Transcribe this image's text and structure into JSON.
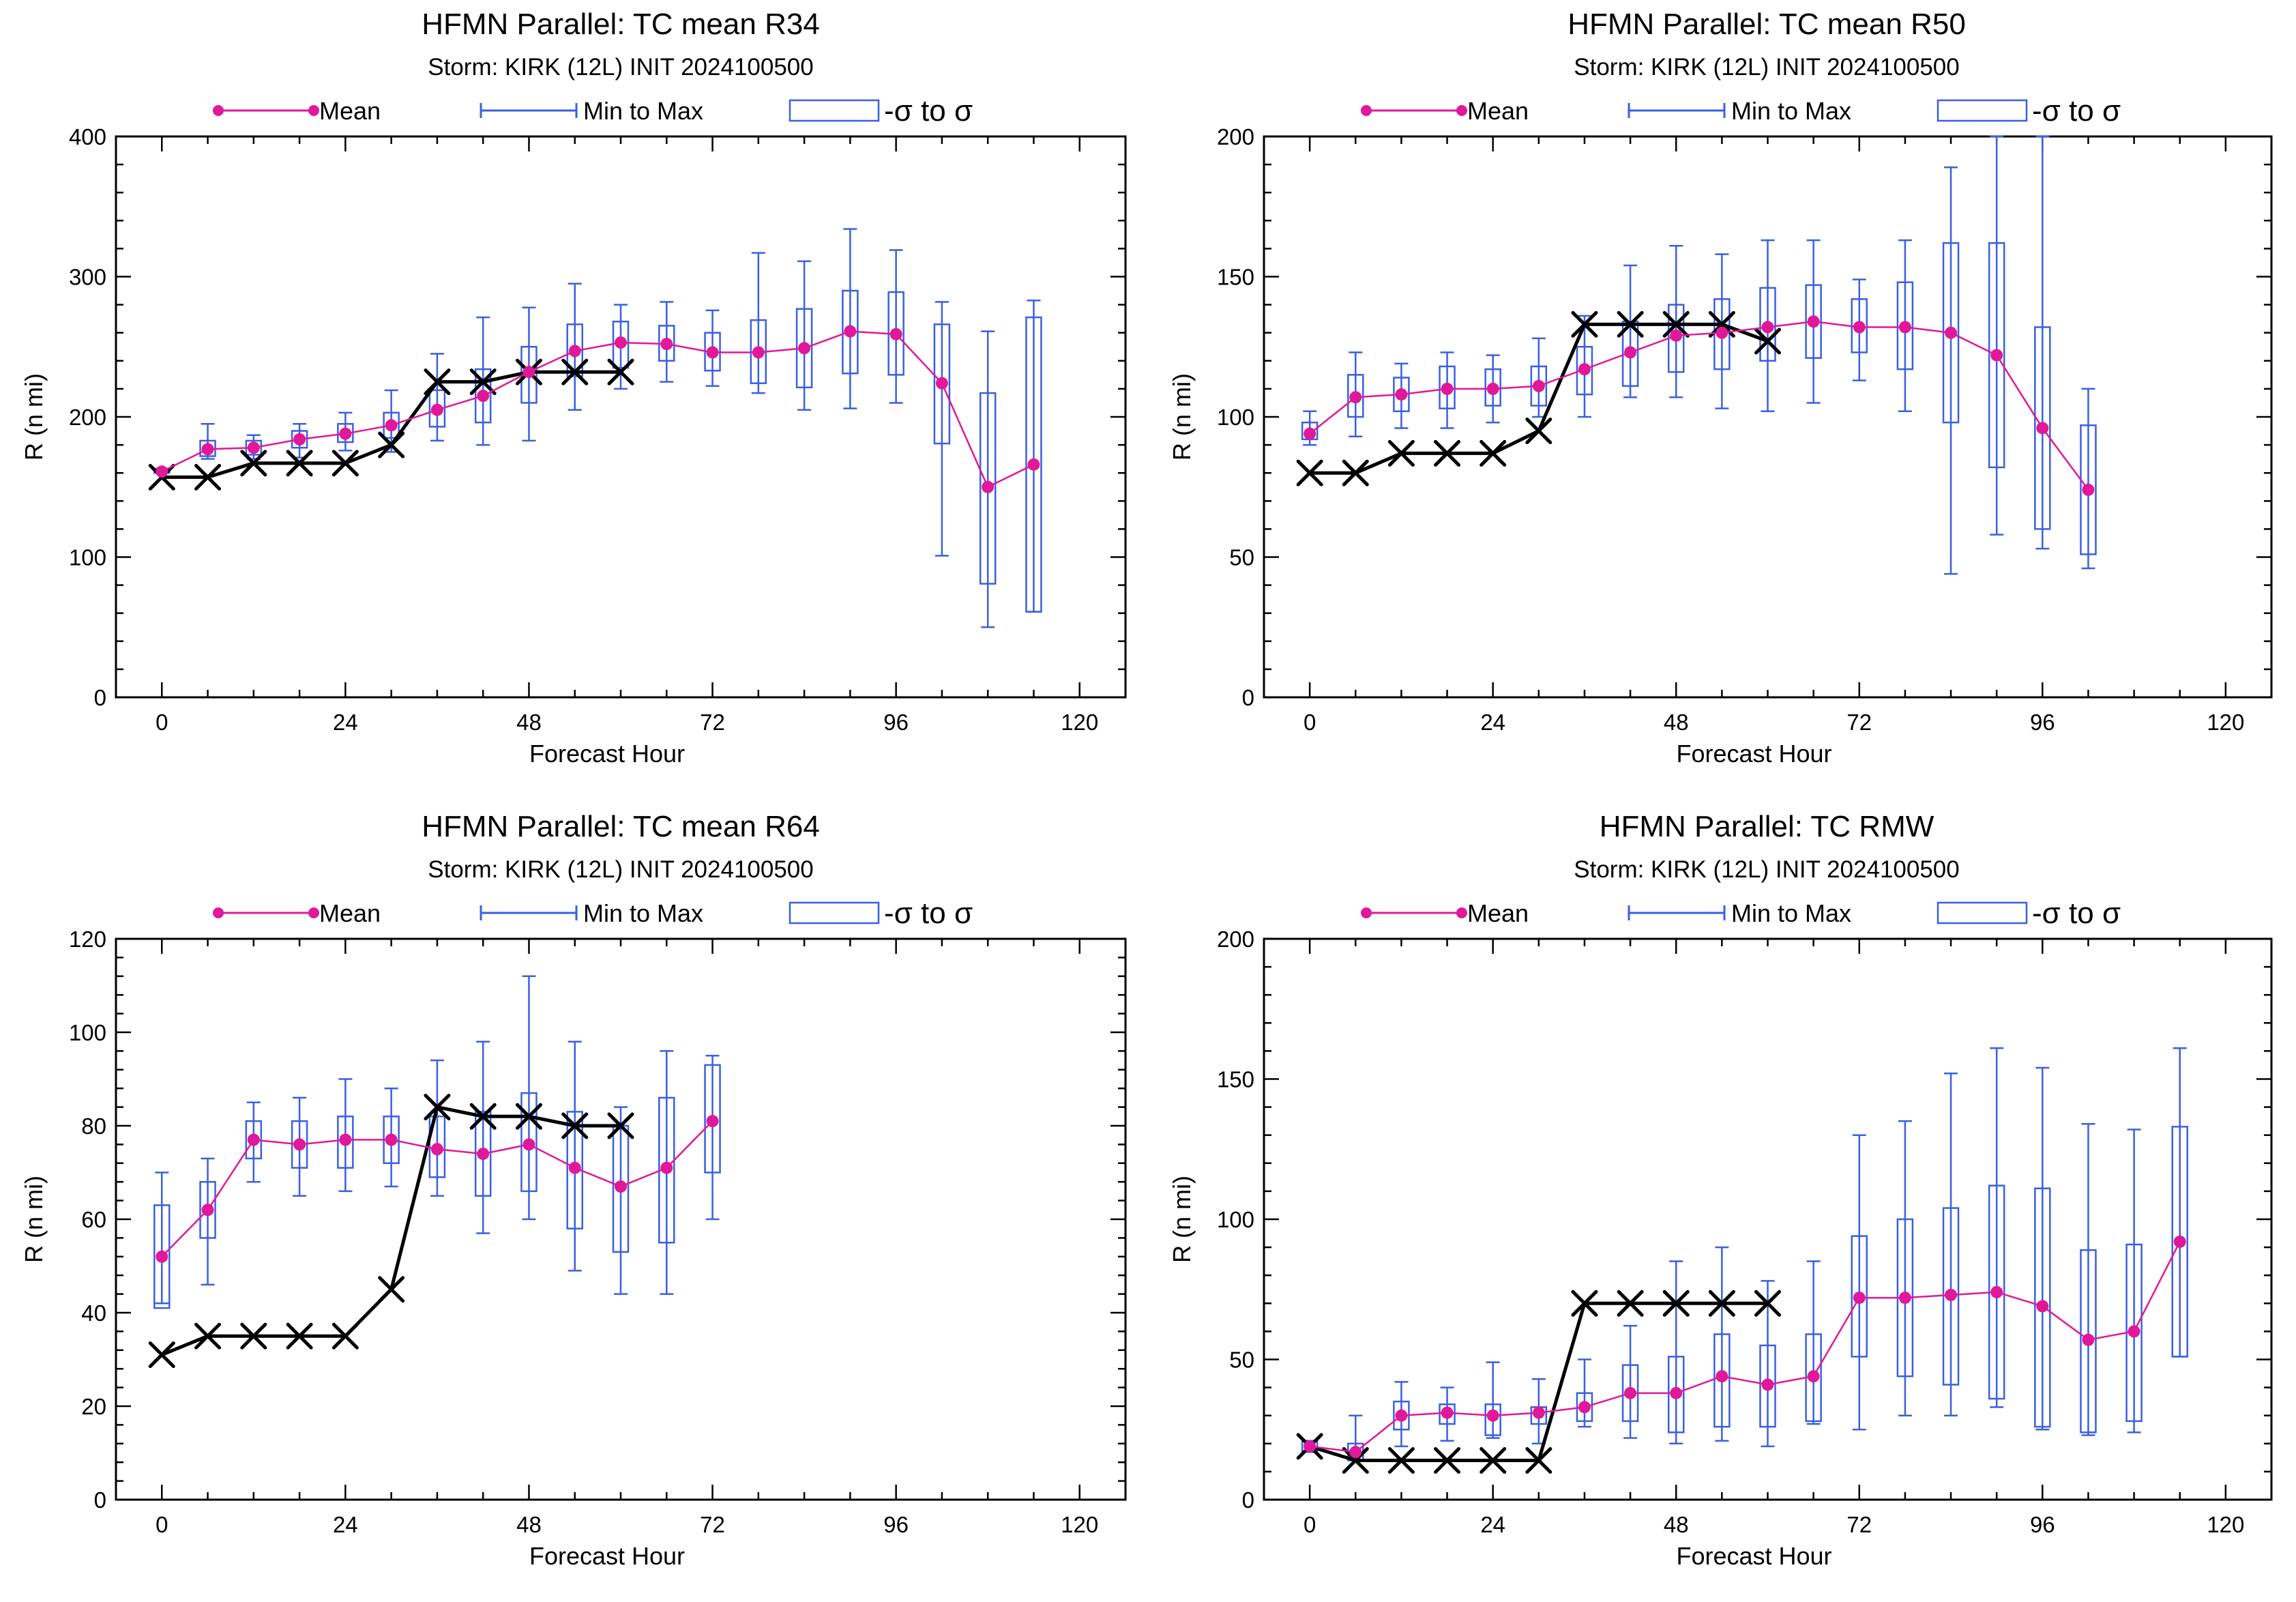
{
  "legend": {
    "mean": "Mean",
    "minmax": "Min to Max",
    "sigma": "-σ to σ"
  },
  "colors": {
    "mean": "#e0189a",
    "range": "#3b5fe0",
    "best_track": "#000000"
  },
  "chart_data": [
    {
      "type": "box",
      "title": "HFMN Parallel: TC mean R34",
      "subtitle": "Storm: KIRK (12L) INIT 2024100500",
      "xlabel": "Forecast Hour",
      "ylabel": "R (n mi)",
      "xlim": [
        -6,
        126
      ],
      "ylim": [
        0,
        400
      ],
      "xticks": [
        0,
        24,
        48,
        72,
        96,
        120
      ],
      "yticks": [
        0,
        100,
        200,
        300,
        400
      ],
      "best_track": {
        "x": [
          0,
          6,
          12,
          18,
          24,
          30,
          36,
          42,
          48,
          54,
          60
        ],
        "y": [
          157,
          157,
          167,
          167,
          167,
          180,
          225,
          225,
          232,
          232,
          232
        ]
      },
      "mean": {
        "x": [
          0,
          6,
          12,
          18,
          24,
          30,
          36,
          42,
          48,
          54,
          60,
          66,
          72,
          78,
          84,
          90,
          96,
          102,
          108,
          114
        ],
        "y": [
          161,
          177,
          178,
          184,
          188,
          194,
          205,
          215,
          232,
          247,
          253,
          252,
          246,
          246,
          249,
          261,
          259,
          224,
          150,
          166
        ]
      },
      "boxes": [
        {
          "x": 0,
          "min": 160,
          "max": 163,
          "lo": 160,
          "hi": 163
        },
        {
          "x": 6,
          "min": 170,
          "max": 195,
          "lo": 172,
          "hi": 183
        },
        {
          "x": 12,
          "min": 170,
          "max": 187,
          "lo": 173,
          "hi": 183
        },
        {
          "x": 18,
          "min": 171,
          "max": 195,
          "lo": 178,
          "hi": 190
        },
        {
          "x": 24,
          "min": 176,
          "max": 203,
          "lo": 182,
          "hi": 195
        },
        {
          "x": 30,
          "min": 175,
          "max": 219,
          "lo": 185,
          "hi": 203
        },
        {
          "x": 36,
          "min": 183,
          "max": 245,
          "lo": 193,
          "hi": 219
        },
        {
          "x": 42,
          "min": 180,
          "max": 271,
          "lo": 196,
          "hi": 234
        },
        {
          "x": 48,
          "min": 183,
          "max": 278,
          "lo": 210,
          "hi": 250
        },
        {
          "x": 54,
          "min": 205,
          "max": 295,
          "lo": 229,
          "hi": 266
        },
        {
          "x": 60,
          "min": 220,
          "max": 280,
          "lo": 235,
          "hi": 268
        },
        {
          "x": 66,
          "min": 225,
          "max": 282,
          "lo": 240,
          "hi": 265
        },
        {
          "x": 72,
          "min": 222,
          "max": 276,
          "lo": 233,
          "hi": 260
        },
        {
          "x": 78,
          "min": 217,
          "max": 317,
          "lo": 224,
          "hi": 269
        },
        {
          "x": 84,
          "min": 205,
          "max": 311,
          "lo": 221,
          "hi": 277
        },
        {
          "x": 90,
          "min": 206,
          "max": 334,
          "lo": 231,
          "hi": 290
        },
        {
          "x": 96,
          "min": 210,
          "max": 319,
          "lo": 230,
          "hi": 289
        },
        {
          "x": 102,
          "min": 101,
          "max": 282,
          "lo": 181,
          "hi": 266
        },
        {
          "x": 108,
          "min": 50,
          "max": 261,
          "lo": 81,
          "hi": 217
        },
        {
          "x": 114,
          "min": 61,
          "max": 283,
          "lo": 61,
          "hi": 271
        }
      ]
    },
    {
      "type": "box",
      "title": "HFMN Parallel: TC mean R50",
      "subtitle": "Storm: KIRK (12L) INIT 2024100500",
      "xlabel": "Forecast Hour",
      "ylabel": "R (n mi)",
      "xlim": [
        -6,
        126
      ],
      "ylim": [
        0,
        200
      ],
      "xticks": [
        0,
        24,
        48,
        72,
        96,
        120
      ],
      "yticks": [
        0,
        50,
        100,
        150,
        200
      ],
      "best_track": {
        "x": [
          0,
          6,
          12,
          18,
          24,
          30,
          36,
          42,
          48,
          54,
          60
        ],
        "y": [
          80,
          80,
          87,
          87,
          87,
          95,
          133,
          133,
          133,
          133,
          127
        ]
      },
      "mean": {
        "x": [
          0,
          6,
          12,
          18,
          24,
          30,
          36,
          42,
          48,
          54,
          60,
          66,
          72,
          78,
          84,
          90,
          96,
          102
        ],
        "y": [
          94,
          107,
          108,
          110,
          110,
          111,
          117,
          123,
          129,
          130,
          132,
          134,
          132,
          132,
          130,
          122,
          96,
          74
        ]
      },
      "boxes": [
        {
          "x": 0,
          "min": 90,
          "max": 102,
          "lo": 92,
          "hi": 98
        },
        {
          "x": 6,
          "min": 93,
          "max": 123,
          "lo": 100,
          "hi": 115
        },
        {
          "x": 12,
          "min": 96,
          "max": 119,
          "lo": 102,
          "hi": 114
        },
        {
          "x": 18,
          "min": 96,
          "max": 123,
          "lo": 103,
          "hi": 118
        },
        {
          "x": 24,
          "min": 98,
          "max": 122,
          "lo": 104,
          "hi": 117
        },
        {
          "x": 30,
          "min": 100,
          "max": 128,
          "lo": 104,
          "hi": 118
        },
        {
          "x": 36,
          "min": 100,
          "max": 136,
          "lo": 108,
          "hi": 125
        },
        {
          "x": 42,
          "min": 107,
          "max": 154,
          "lo": 111,
          "hi": 134
        },
        {
          "x": 48,
          "min": 107,
          "max": 161,
          "lo": 116,
          "hi": 140
        },
        {
          "x": 54,
          "min": 103,
          "max": 158,
          "lo": 117,
          "hi": 142
        },
        {
          "x": 60,
          "min": 102,
          "max": 163,
          "lo": 120,
          "hi": 146
        },
        {
          "x": 66,
          "min": 105,
          "max": 163,
          "lo": 121,
          "hi": 147
        },
        {
          "x": 72,
          "min": 113,
          "max": 149,
          "lo": 123,
          "hi": 142
        },
        {
          "x": 78,
          "min": 102,
          "max": 163,
          "lo": 117,
          "hi": 148
        },
        {
          "x": 84,
          "min": 44,
          "max": 189,
          "lo": 98,
          "hi": 162
        },
        {
          "x": 90,
          "min": 58,
          "max": 200,
          "lo": 82,
          "hi": 162
        },
        {
          "x": 96,
          "min": 53,
          "max": 200,
          "lo": 60,
          "hi": 132
        },
        {
          "x": 102,
          "min": 46,
          "max": 110,
          "lo": 51,
          "hi": 97
        }
      ]
    },
    {
      "type": "box",
      "title": "HFMN Parallel: TC mean R64",
      "subtitle": "Storm: KIRK (12L) INIT 2024100500",
      "xlabel": "Forecast Hour",
      "ylabel": "R (n mi)",
      "xlim": [
        -6,
        126
      ],
      "ylim": [
        0,
        120
      ],
      "xticks": [
        0,
        24,
        48,
        72,
        96,
        120
      ],
      "yticks": [
        0,
        20,
        40,
        60,
        80,
        100,
        120
      ],
      "best_track": {
        "x": [
          0,
          6,
          12,
          18,
          24,
          30,
          36,
          42,
          48,
          54,
          60
        ],
        "y": [
          31,
          35,
          35,
          35,
          35,
          45,
          84,
          82,
          82,
          80,
          80
        ]
      },
      "mean": {
        "x": [
          0,
          6,
          12,
          18,
          24,
          30,
          36,
          42,
          48,
          54,
          60,
          66,
          72
        ],
        "y": [
          52,
          62,
          77,
          76,
          77,
          77,
          75,
          74,
          76,
          71,
          67,
          71,
          81
        ]
      },
      "boxes": [
        {
          "x": 0,
          "min": 42,
          "max": 70,
          "lo": 41,
          "hi": 63
        },
        {
          "x": 6,
          "min": 46,
          "max": 73,
          "lo": 56,
          "hi": 68
        },
        {
          "x": 12,
          "min": 68,
          "max": 85,
          "lo": 73,
          "hi": 81
        },
        {
          "x": 18,
          "min": 65,
          "max": 86,
          "lo": 71,
          "hi": 81
        },
        {
          "x": 24,
          "min": 66,
          "max": 90,
          "lo": 71,
          "hi": 82
        },
        {
          "x": 30,
          "min": 67,
          "max": 88,
          "lo": 72,
          "hi": 82
        },
        {
          "x": 36,
          "min": 65,
          "max": 94,
          "lo": 69,
          "hi": 82
        },
        {
          "x": 42,
          "min": 57,
          "max": 98,
          "lo": 65,
          "hi": 83
        },
        {
          "x": 48,
          "min": 60,
          "max": 112,
          "lo": 66,
          "hi": 87
        },
        {
          "x": 54,
          "min": 49,
          "max": 98,
          "lo": 58,
          "hi": 83
        },
        {
          "x": 60,
          "min": 44,
          "max": 84,
          "lo": 53,
          "hi": 80
        },
        {
          "x": 66,
          "min": 44,
          "max": 96,
          "lo": 55,
          "hi": 86
        },
        {
          "x": 72,
          "min": 60,
          "max": 95,
          "lo": 70,
          "hi": 93
        }
      ]
    },
    {
      "type": "box",
      "title": "HFMN Parallel: TC RMW",
      "subtitle": "Storm: KIRK (12L) INIT 2024100500",
      "xlabel": "Forecast Hour",
      "ylabel": "R (n mi)",
      "xlim": [
        -6,
        126
      ],
      "ylim": [
        0,
        200
      ],
      "xticks": [
        0,
        24,
        48,
        72,
        96,
        120
      ],
      "yticks": [
        0,
        50,
        100,
        150,
        200
      ],
      "best_track": {
        "x": [
          0,
          6,
          12,
          18,
          24,
          30,
          36,
          42,
          48,
          54,
          60
        ],
        "y": [
          19,
          14,
          14,
          14,
          14,
          14,
          70,
          70,
          70,
          70,
          70
        ]
      },
      "mean": {
        "x": [
          0,
          6,
          12,
          18,
          24,
          30,
          36,
          42,
          48,
          54,
          60,
          66,
          72,
          78,
          84,
          90,
          96,
          102,
          108,
          114
        ],
        "y": [
          19,
          17,
          30,
          31,
          30,
          31,
          33,
          38,
          38,
          44,
          41,
          44,
          72,
          72,
          73,
          74,
          69,
          57,
          60,
          92
        ]
      },
      "boxes": [
        {
          "x": 0,
          "min": 17,
          "max": 21,
          "lo": 17,
          "hi": 21
        },
        {
          "x": 6,
          "min": 14,
          "max": 30,
          "lo": 14,
          "hi": 20
        },
        {
          "x": 12,
          "min": 19,
          "max": 42,
          "lo": 25,
          "hi": 35
        },
        {
          "x": 18,
          "min": 21,
          "max": 40,
          "lo": 27,
          "hi": 34
        },
        {
          "x": 24,
          "min": 22,
          "max": 49,
          "lo": 23,
          "hi": 34
        },
        {
          "x": 30,
          "min": 20,
          "max": 43,
          "lo": 27,
          "hi": 33
        },
        {
          "x": 36,
          "min": 26,
          "max": 50,
          "lo": 28,
          "hi": 38
        },
        {
          "x": 42,
          "min": 22,
          "max": 62,
          "lo": 28,
          "hi": 48
        },
        {
          "x": 48,
          "min": 20,
          "max": 85,
          "lo": 24,
          "hi": 51
        },
        {
          "x": 54,
          "min": 21,
          "max": 90,
          "lo": 26,
          "hi": 59
        },
        {
          "x": 60,
          "min": 19,
          "max": 78,
          "lo": 26,
          "hi": 55
        },
        {
          "x": 66,
          "min": 27,
          "max": 85,
          "lo": 28,
          "hi": 59
        },
        {
          "x": 72,
          "min": 25,
          "max": 130,
          "lo": 51,
          "hi": 94
        },
        {
          "x": 78,
          "min": 30,
          "max": 135,
          "lo": 44,
          "hi": 100
        },
        {
          "x": 84,
          "min": 30,
          "max": 152,
          "lo": 41,
          "hi": 104
        },
        {
          "x": 90,
          "min": 33,
          "max": 161,
          "lo": 36,
          "hi": 112
        },
        {
          "x": 96,
          "min": 25,
          "max": 154,
          "lo": 26,
          "hi": 111
        },
        {
          "x": 102,
          "min": 23,
          "max": 134,
          "lo": 24,
          "hi": 89
        },
        {
          "x": 108,
          "min": 24,
          "max": 132,
          "lo": 28,
          "hi": 91
        },
        {
          "x": 114,
          "min": 51,
          "max": 161,
          "lo": 51,
          "hi": 133
        }
      ]
    }
  ]
}
